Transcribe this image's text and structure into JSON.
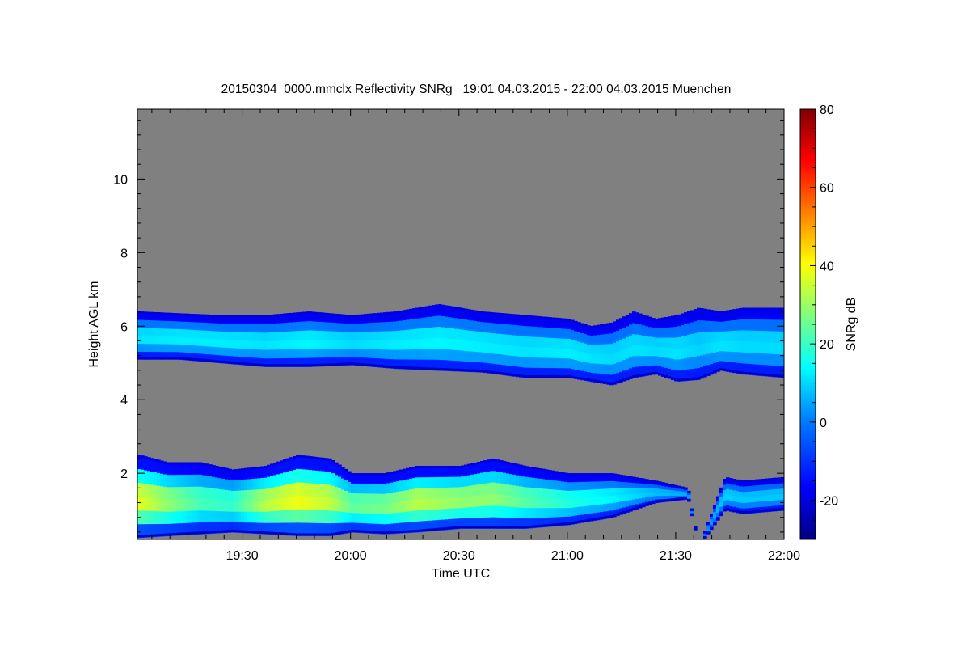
{
  "chart_data": {
    "type": "heatmap",
    "title": "20150304_0000.mmclx Reflectivity SNRg   19:01 04.03.2015 - 22:00 04.03.2015 Muenchen",
    "xlabel": "Time UTC",
    "ylabel": "Height AGL km",
    "x_start_hours": 19.0167,
    "x_end_hours": 22.0,
    "ylim": [
      0.2,
      11.9
    ],
    "x_ticks": [
      {
        "label": "19:30",
        "value": 19.5
      },
      {
        "label": "20:00",
        "value": 20.0
      },
      {
        "label": "20:30",
        "value": 20.5
      },
      {
        "label": "21:00",
        "value": 21.0
      },
      {
        "label": "21:30",
        "value": 21.5
      },
      {
        "label": "22:00",
        "value": 22.0
      }
    ],
    "y_ticks": [
      2,
      4,
      6,
      8,
      10
    ],
    "colorbar": {
      "label": "SNRg dB",
      "range": [
        -30,
        80
      ],
      "ticks": [
        -20,
        0,
        20,
        40,
        60,
        80
      ],
      "colors": [
        "#00007f",
        "#0000ff",
        "#007fff",
        "#00ffff",
        "#7fff7f",
        "#ffff00",
        "#ff7f00",
        "#ff0000",
        "#7f0000"
      ]
    },
    "background_color": "#808080",
    "layers": [
      {
        "name": "upper",
        "boundary_times": [
          19.02,
          19.2,
          19.4,
          19.6,
          19.8,
          20.0,
          20.2,
          20.4,
          20.6,
          20.8,
          21.0,
          21.1,
          21.2,
          21.3,
          21.4,
          21.5,
          21.6,
          21.7,
          21.8,
          22.0
        ],
        "top_km": [
          6.4,
          6.35,
          6.3,
          6.3,
          6.4,
          6.3,
          6.4,
          6.6,
          6.4,
          6.3,
          6.2,
          6.0,
          6.1,
          6.4,
          6.2,
          6.3,
          6.5,
          6.4,
          6.5,
          6.5
        ],
        "base_km": [
          5.1,
          5.1,
          5.0,
          4.9,
          4.9,
          4.95,
          4.85,
          4.8,
          4.75,
          4.6,
          4.6,
          4.5,
          4.4,
          4.6,
          4.7,
          4.5,
          4.55,
          4.8,
          4.7,
          4.6
        ],
        "peak_snr": [
          12,
          13,
          13,
          12,
          14,
          11,
          13,
          14,
          13,
          12,
          13,
          12,
          11,
          12,
          11,
          12,
          10,
          12,
          11,
          11
        ]
      },
      {
        "name": "lower",
        "boundary_times": [
          19.02,
          19.15,
          19.3,
          19.45,
          19.6,
          19.75,
          19.9,
          20.0,
          20.15,
          20.3,
          20.5,
          20.65,
          20.8,
          21.0,
          21.2,
          21.4,
          21.55,
          21.6,
          21.72,
          21.8,
          22.0
        ],
        "top_km": [
          2.5,
          2.3,
          2.3,
          2.1,
          2.2,
          2.5,
          2.4,
          2.0,
          2.0,
          2.2,
          2.2,
          2.4,
          2.2,
          2.0,
          2.0,
          1.8,
          1.6,
          0.0,
          1.9,
          1.8,
          1.9
        ],
        "base_km": [
          0.25,
          0.3,
          0.35,
          0.4,
          0.35,
          0.3,
          0.3,
          0.4,
          0.35,
          0.4,
          0.5,
          0.5,
          0.5,
          0.6,
          0.8,
          1.2,
          1.3,
          0.0,
          1.0,
          0.9,
          1.0
        ],
        "peak_snr": [
          38,
          30,
          22,
          20,
          34,
          40,
          35,
          25,
          27,
          34,
          30,
          30,
          24,
          18,
          14,
          8,
          6,
          0,
          10,
          9,
          9
        ]
      }
    ]
  }
}
